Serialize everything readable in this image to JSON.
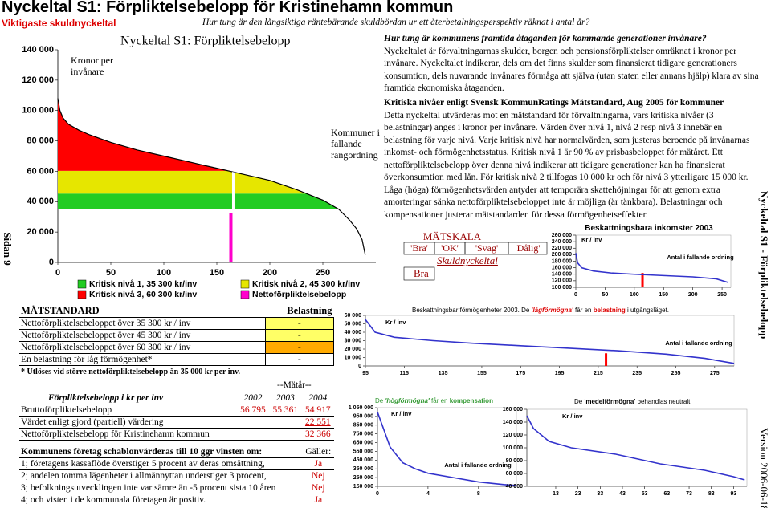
{
  "header": {
    "title": "Nyckeltal S1: Förpliktelsebelopp för Kristinehamn kommun",
    "category": "Viktigaste skuldnyckeltal",
    "question": "Hur tung är den långsiktiga räntebärande skuldbördan ur ett återbetalningsperspektiv räknat i antal år?"
  },
  "side": {
    "page": "Sidan 9",
    "topic": "Nyckeltal S1 - Förpliktelsebelopp",
    "version": "Version 2006-06-18"
  },
  "text_blocks": [
    {
      "heading": "Hur tung är kommunens framtida åtaganden för kommande generationer invånare?",
      "body": "Nyckeltalet är förvaltningarnas skulder, borgen och pensionsförpliktelser omräknat i kronor per invånare. Nyckeltalet indikerar, dels om det finns skulder som finansierat tidigare generationers konsumtion, dels nuvarande invånares förmåga att själva (utan staten eller annans hjälp) klara av sina framtida ekonomiska åtaganden."
    },
    {
      "heading": "Kritiska nivåer enligt Svensk KommunRatings Mätstandard, Aug 2005 för kommuner",
      "body": "Detta nyckeltal utvärderas mot en mätstandard för förvaltningarna, vars kritiska nivåer (3 belastningar) anges i kronor per invånare. Värden över nivå 1, nivå 2 resp nivå 3 innebär en belastning för varje nivå. Varje kritisk nivå har normalvärden, som justeras beroende på invånarnas inkomst- och förmögenhetsstatus. Kritisk nivå 1 är 90 % av prisbasbeloppet för mätåret. Ett nettoförpliktelsebelopp över denna nivå indikerar att tidigare generationer kan ha finansierat överkonsumtion med lån. För kritisk nivå 2 tillfogas 10 000 kr och för nivå 3 ytterligare 15 000 kr. Låga (höga) förmögenhetsvärden antyder att temporära skattehöjningar för att genom extra amorteringar sänka nettoförpliktelsebeloppet inte är möjliga (är tänkbara). Belastningar och kompensationer justerar mätstandarden för dessa förmögenhetseffekter."
    }
  ],
  "scale": {
    "title": "MÄTSKALA",
    "grades": [
      "'Bra'",
      "'OK'",
      "'Svag'",
      "'Dålig'"
    ],
    "label": "Skuldnyckeltal",
    "result": "Bra"
  },
  "standard": {
    "header": [
      "MÄTSTANDARD",
      "Belastning"
    ],
    "rows": [
      [
        "Nettoförpliktelsebeloppet över 35 300 kr / inv",
        "-"
      ],
      [
        "Nettoförpliktelsebeloppet över 45 300 kr / inv",
        "-"
      ],
      [
        "Nettoförpliktelsebeloppet över 60 300 kr / inv",
        "-"
      ],
      [
        "En belastning för låg förmögenhet*",
        "-"
      ]
    ],
    "note": "* Utlöses vid större nettoförpliktelsebelopp än 35 000 kr per inv."
  },
  "amounts": {
    "period": "--Mätår--",
    "header": [
      "Förpliktelsebelopp i kr per inv",
      "2002",
      "2003",
      "2004"
    ],
    "rows": [
      [
        "Bruttoförpliktelsebelopp",
        "56 795",
        "55 361",
        "54 917"
      ],
      [
        "Värdet enligt gjord (partiell) värdering",
        null,
        null,
        "22 551"
      ],
      [
        "Nettoförpliktelsebelopp för Kristinehamn kommun",
        null,
        null,
        "32 366"
      ]
    ]
  },
  "companies": {
    "header": [
      "Kommunens företag schablonvärderas till 10 ggr vinsten om:",
      "Gäller:"
    ],
    "rows": [
      [
        "1; företagens kassaflöde överstiger 5 procent av deras omsättning,",
        "Ja"
      ],
      [
        "2; andelen tomma lägenheter i allmännyttan understiger 3 procent,",
        "Nej"
      ],
      [
        "3; befolkningsutvecklingen inte var sämre än -5 procent sista 10 åren",
        "Nej"
      ],
      [
        "4; och visten i de kommunala företagen är positiv.",
        "Ja"
      ]
    ]
  },
  "chart_data": [
    {
      "type": "area",
      "title": "Nyckeltal S1: Förpliktelsebelopp",
      "ylabel": "Kronor per invånare",
      "xlabel": "Kommuner i fallande rangordning",
      "color": "#000000",
      "x": [
        0,
        2,
        5,
        10,
        20,
        30,
        50,
        75,
        100,
        125,
        150,
        175,
        200,
        225,
        250,
        265,
        275,
        282,
        287,
        290
      ],
      "values": [
        108000,
        100000,
        95000,
        91000,
        87000,
        84000,
        79000,
        74000,
        70000,
        66000,
        62000,
        58000,
        54000,
        48000,
        41000,
        35000,
        28000,
        22000,
        15000,
        5000
      ],
      "xlim": [
        0,
        300
      ],
      "ylim": [
        0,
        140000
      ],
      "xticks": [
        0,
        50,
        100,
        150,
        200,
        250
      ],
      "yticks": [
        0,
        {
          "value": 20000,
          "label": "20 000"
        },
        {
          "value": 40000,
          "label": "40 000"
        },
        {
          "value": 60000,
          "label": "60 000"
        },
        {
          "value": 80000,
          "label": "80 000"
        },
        {
          "value": 100000,
          "label": "100 000"
        },
        {
          "value": 120000,
          "label": "120 000"
        },
        {
          "value": 140000,
          "label": "140 000"
        }
      ],
      "levels": [
        {
          "name": "Kritisk nivå 1, 35 300 kr/inv",
          "value": 35300,
          "color": "#22cc22"
        },
        {
          "name": "Kritisk nivå 2, 45 300 kr/inv",
          "value": 45300,
          "color": "#e6e600"
        },
        {
          "name": "Kritisk nivå 3, 60 300 kr/inv",
          "value": 60300,
          "color": "#ff0000"
        }
      ],
      "highlight": {
        "name": "Nettoförpliktelsebelopp",
        "x": 164,
        "value": 32366,
        "color": "#ff00cc"
      }
    },
    {
      "type": "line",
      "title_parts": [
        {
          "text": "Beskattningsbara inkomster 2003",
          "color": "#000000",
          "bold": true,
          "italic": false
        }
      ],
      "ylabel": "Kr / inv",
      "xlabel": "Antal i fallande ordning",
      "color": "#3333cc",
      "x": [
        0,
        3,
        10,
        30,
        60,
        100,
        150,
        200,
        240,
        260
      ],
      "values": [
        205000,
        175000,
        160000,
        150000,
        144000,
        140000,
        136000,
        132000,
        126000,
        115000
      ],
      "xlim": [
        0,
        265
      ],
      "ylim": [
        100000,
        260000
      ],
      "xticks": [
        0,
        50,
        100,
        150,
        200,
        250
      ],
      "yticks": [
        {
          "value": 100000,
          "label": "100 000"
        },
        {
          "value": 120000,
          "label": "120 000"
        },
        {
          "value": 140000,
          "label": "140 000"
        },
        {
          "value": 160000,
          "label": "160 000"
        },
        {
          "value": 180000,
          "label": "180 000"
        },
        {
          "value": 200000,
          "label": "200 000"
        },
        {
          "value": 220000,
          "label": "220 000"
        },
        {
          "value": 240000,
          "label": "240 000"
        },
        {
          "value": 260000,
          "label": "260 000"
        }
      ],
      "highlight": {
        "x": 114,
        "value": 144000,
        "color": "#ff0000"
      }
    },
    {
      "type": "line",
      "title_parts": [
        {
          "text": "Beskattningsbar förmögenheter 2003. De ",
          "color": "#000000",
          "bold": false,
          "italic": false
        },
        {
          "text": "'lågförmögna'",
          "color": "#dd0000",
          "bold": true,
          "italic": true
        },
        {
          "text": " får en ",
          "color": "#000000",
          "bold": false,
          "italic": false
        },
        {
          "text": "belastning",
          "color": "#dd0000",
          "bold": true,
          "italic": false
        },
        {
          "text": " i utgångsläget.",
          "color": "#000000",
          "bold": false,
          "italic": false
        }
      ],
      "ylabel": "Kr / inv",
      "xlabel": "Antal i fallande ordning",
      "color": "#3333cc",
      "x": [
        95,
        100,
        110,
        130,
        150,
        175,
        200,
        225,
        250,
        270,
        285
      ],
      "values": [
        55000,
        40000,
        34000,
        30000,
        27000,
        24000,
        21000,
        18000,
        14000,
        9000,
        3000
      ],
      "xlim": [
        95,
        285
      ],
      "ylim": [
        0,
        60000
      ],
      "xticks": [
        95,
        115,
        135,
        155,
        175,
        195,
        215,
        235,
        255,
        275
      ],
      "yticks": [
        0,
        {
          "value": 10000,
          "label": "10 000"
        },
        {
          "value": 20000,
          "label": "20 000"
        },
        {
          "value": 30000,
          "label": "30 000"
        },
        {
          "value": 40000,
          "label": "40 000"
        },
        {
          "value": 50000,
          "label": "50 000"
        },
        {
          "value": 60000,
          "label": "60 000"
        }
      ],
      "highlight": {
        "x": 219,
        "value": 15000,
        "color": "#ff0000"
      }
    },
    {
      "type": "line",
      "title_parts": [
        {
          "text": "De ",
          "color": "#339933",
          "bold": false,
          "italic": false
        },
        {
          "text": "'högförmögna'",
          "color": "#339933",
          "bold": true,
          "italic": true
        },
        {
          "text": " får en ",
          "color": "#339933",
          "bold": false,
          "italic": false
        },
        {
          "text": "kompensation",
          "color": "#339933",
          "bold": true,
          "italic": false
        }
      ],
      "ylabel": "Kr / inv",
      "xlabel": "Antal i fallande ordning",
      "color": "#3333cc",
      "x": [
        0,
        1,
        2,
        3,
        4,
        6,
        8,
        10,
        11
      ],
      "values": [
        1000000,
        600000,
        420000,
        350000,
        300000,
        250000,
        200000,
        170000,
        160000
      ],
      "xlim": [
        0,
        11
      ],
      "ylim": [
        150000,
        1050000
      ],
      "xticks": [
        0,
        4,
        8
      ],
      "yticks": [
        {
          "value": 150000,
          "label": "150 000"
        },
        {
          "value": 250000,
          "label": "250 000"
        },
        {
          "value": 350000,
          "label": "350 000"
        },
        {
          "value": 450000,
          "label": "450 000"
        },
        {
          "value": 550000,
          "label": "550 000"
        },
        {
          "value": 650000,
          "label": "650 000"
        },
        {
          "value": 750000,
          "label": "750 000"
        },
        {
          "value": 850000,
          "label": "850 000"
        },
        {
          "value": 950000,
          "label": "950 000"
        },
        {
          "value": 1050000,
          "label": "1 050 000"
        }
      ]
    },
    {
      "type": "line",
      "title_parts": [
        {
          "text": "De ",
          "color": "#000000",
          "bold": false,
          "italic": false
        },
        {
          "text": "'medelförmögna'",
          "color": "#000000",
          "bold": true,
          "italic": false
        },
        {
          "text": " behandlas neutralt",
          "color": "#000000",
          "bold": false,
          "italic": false
        }
      ],
      "ylabel": "Kr / inv",
      "color": "#3333cc",
      "x": [
        0,
        3,
        10,
        20,
        40,
        60,
        80,
        93,
        98
      ],
      "values": [
        150000,
        130000,
        110000,
        100000,
        90000,
        75000,
        65000,
        55000,
        50000
      ],
      "xlim": [
        0,
        99
      ],
      "ylim": [
        40000,
        160000
      ],
      "xticks": [
        13,
        23,
        33,
        43,
        53,
        63,
        73,
        83,
        93
      ],
      "yticks": [
        {
          "value": 40000,
          "label": "40 000"
        },
        {
          "value": 60000,
          "label": "60 000"
        },
        {
          "value": 80000,
          "label": "80 000"
        },
        {
          "value": 100000,
          "label": "100 000"
        },
        {
          "value": 120000,
          "label": "120 000"
        },
        {
          "value": 140000,
          "label": "140 000"
        },
        {
          "value": 160000,
          "label": "160 000"
        }
      ]
    }
  ]
}
